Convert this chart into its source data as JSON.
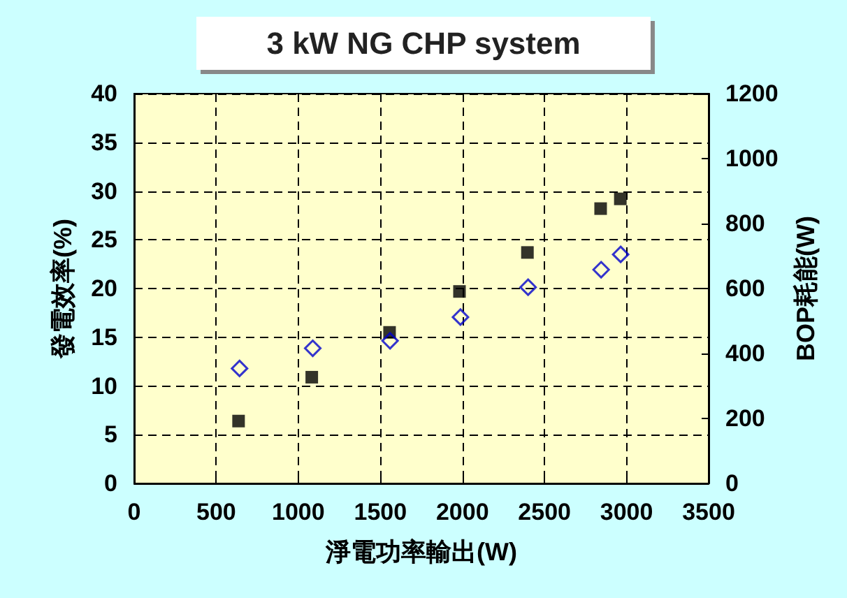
{
  "chart_data": {
    "type": "scatter",
    "title": "3 kW NG CHP system",
    "xlabel": "淨電功率輸出(W)",
    "ylabel": "發電效率(%)",
    "y2label": "BOP耗能(W)",
    "xlim": [
      0,
      3500
    ],
    "xticks": [
      0,
      500,
      1000,
      1500,
      2000,
      2500,
      3000,
      3500
    ],
    "ylim": [
      0,
      40
    ],
    "yticks": [
      0,
      5,
      10,
      15,
      20,
      25,
      30,
      35,
      40
    ],
    "y2lim": [
      0,
      1200
    ],
    "y2ticks": [
      0,
      200,
      400,
      600,
      800,
      1000,
      1200
    ],
    "grid": true,
    "series": [
      {
        "color": "#000000",
        "marker": "square",
        "x": [
          636,
          1082,
          1556,
          1982,
          2396,
          2842,
          2962
        ],
        "values": [
          6.4,
          10.9,
          15.5,
          19.7,
          23.7,
          28.2,
          29.2
        ]
      },
      {
        "color": "#0000cc",
        "marker": "diamond",
        "axis": "y2",
        "x": [
          642,
          1088,
          1559,
          1988,
          2400,
          2845,
          2964
        ],
        "values": [
          354,
          416,
          439,
          512,
          604,
          658,
          705
        ]
      }
    ]
  }
}
